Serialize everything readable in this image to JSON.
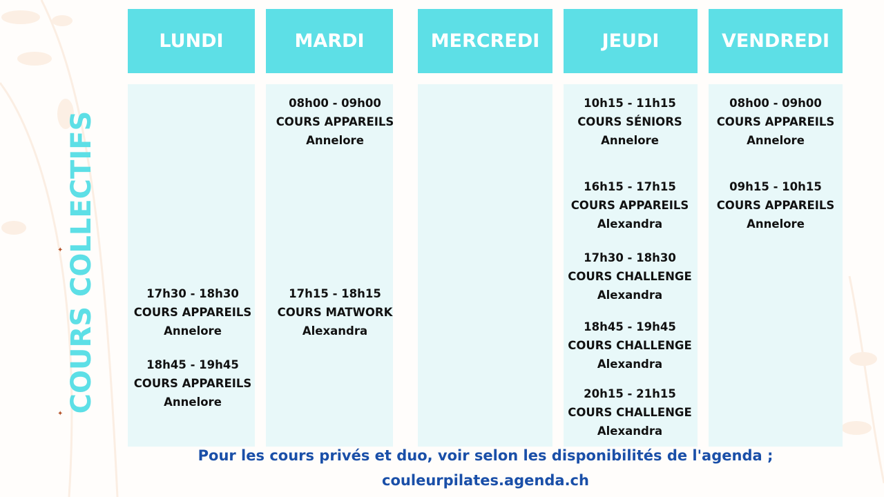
{
  "title": "COURS COLLECTIFS",
  "accent_color": "#5ddfe6",
  "days": [
    {
      "name": "LUNDI",
      "classes": [
        {
          "time": "17h30 - 18h30",
          "course": "COURS APPAREILS",
          "teacher": "Annelore"
        },
        {
          "time": "18h45 - 19h45",
          "course": "COURS APPAREILS",
          "teacher": "Annelore"
        }
      ]
    },
    {
      "name": "MARDI",
      "classes": [
        {
          "time": "08h00 - 09h00",
          "course": "COURS APPAREILS",
          "teacher": "Annelore"
        },
        {
          "time": "17h15 - 18h15",
          "course": "COURS MATWORK",
          "teacher": "Alexandra"
        }
      ]
    },
    {
      "name": "MERCREDI",
      "classes": []
    },
    {
      "name": "JEUDI",
      "classes": [
        {
          "time": "10h15 - 11h15",
          "course": "COURS SÉNIORS",
          "teacher": "Annelore"
        },
        {
          "time": "16h15 - 17h15",
          "course": "COURS APPAREILS",
          "teacher": "Alexandra"
        },
        {
          "time": "17h30 - 18h30",
          "course": "COURS CHALLENGE",
          "teacher": "Alexandra"
        },
        {
          "time": "18h45 - 19h45",
          "course": "COURS CHALLENGE",
          "teacher": "Alexandra"
        },
        {
          "time": "20h15 - 21h15",
          "course": "COURS CHALLENGE",
          "teacher": "Alexandra"
        }
      ]
    },
    {
      "name": "VENDREDI",
      "classes": [
        {
          "time": "08h00 - 09h00",
          "course": "COURS APPAREILS",
          "teacher": "Annelore"
        },
        {
          "time": "09h15 - 10h15",
          "course": "COURS APPAREILS",
          "teacher": "Annelore"
        }
      ]
    }
  ],
  "footer": {
    "line1": "Pour les cours privés et duo,  voir selon les disponibilités de l'agenda ;",
    "line2": "couleurpilates.agenda.ch"
  }
}
